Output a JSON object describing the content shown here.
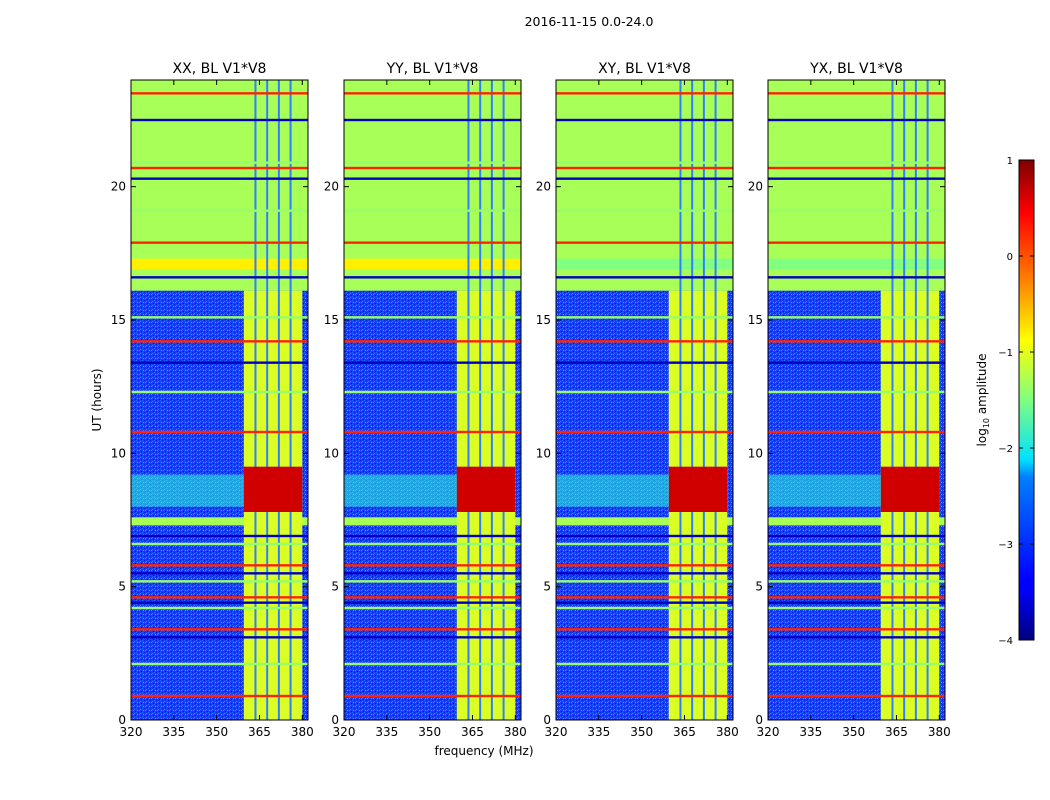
{
  "figure": {
    "suptitle": "2016-11-15 0.0-24.0"
  },
  "chart_data": {
    "type": "heatmap",
    "xlabel": "frequency (MHz)",
    "ylabel": "UT (hours)",
    "xlim": [
      320,
      382
    ],
    "ylim": [
      0,
      24
    ],
    "xticks": [
      320,
      335,
      350,
      365,
      380
    ],
    "yticks": [
      0,
      5,
      10,
      15,
      20
    ],
    "panels": [
      {
        "title": "XX, BL V1*V8",
        "polarization": "XX"
      },
      {
        "title": "YY, BL V1*V8",
        "polarization": "YY"
      },
      {
        "title": "XY, BL V1*V8",
        "polarization": "XY"
      },
      {
        "title": "YX, BL V1*V8",
        "polarization": "YX"
      }
    ],
    "colorbar": {
      "label_prefix": "log",
      "label_sub": "10",
      "label_suffix": " amplitude",
      "range": [
        -4,
        1
      ],
      "ticks": [
        -4,
        -3,
        -2,
        -1,
        0,
        1
      ],
      "tick_labels": [
        "−4",
        "−3",
        "−2",
        "−1",
        "0",
        "1"
      ],
      "colormap": "jet"
    },
    "regions": {
      "quiet_level": -2.8,
      "flagged_level": -1.3,
      "flagged_ut": [
        [
          7.3,
          7.6
        ],
        [
          16.1,
          24.0
        ]
      ],
      "rfi_band_mhz": [
        359.5,
        380.0
      ],
      "rfi_band_level": -1.05,
      "strong_burst": {
        "ut": [
          7.8,
          9.5
        ],
        "mhz": [
          359.5,
          380
        ],
        "level": 0.6
      },
      "yellow_strip_ut": [
        16.9,
        17.3
      ],
      "horizontal_lines_ut": [
        0.9,
        2.1,
        3.1,
        3.4,
        4.2,
        4.4,
        4.6,
        5.2,
        5.5,
        5.8,
        6.6,
        6.9,
        10.8,
        12.3,
        13.4,
        14.2,
        15.1,
        16.6,
        17.9,
        19.1,
        20.3,
        20.7,
        20.9,
        22.5,
        23.5
      ]
    }
  }
}
